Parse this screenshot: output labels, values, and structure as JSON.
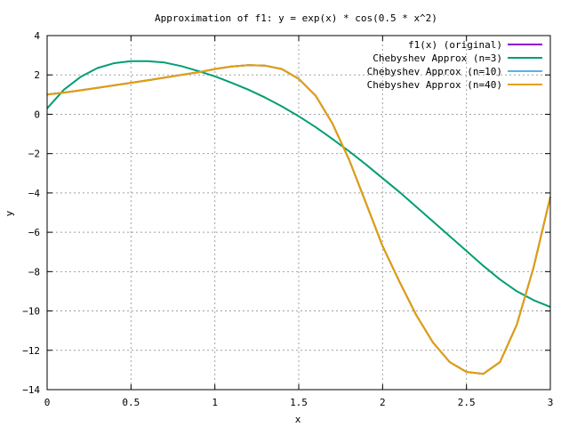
{
  "chart_data": {
    "type": "line",
    "title": "Approximation of f1: y = exp(x) * cos(0.5 * x^2)",
    "xlabel": "x",
    "ylabel": "y",
    "xlim": [
      0,
      3
    ],
    "ylim": [
      -14,
      4
    ],
    "xticks": [
      0,
      0.5,
      1,
      1.5,
      2,
      2.5,
      3
    ],
    "xtick_labels": [
      "0",
      "0.5",
      "1",
      "1.5",
      "2",
      "2.5",
      "3"
    ],
    "yticks": [
      4,
      2,
      0,
      -2,
      -4,
      -6,
      -8,
      -10,
      -12,
      -14
    ],
    "ytick_labels": [
      "4",
      "2",
      "0",
      "−2",
      "−4",
      "−6",
      "−8",
      "−10",
      "−12",
      "−14"
    ],
    "grid": true,
    "legend_position": "top-right",
    "x": [
      0,
      0.1,
      0.2,
      0.3,
      0.4,
      0.5,
      0.6,
      0.7,
      0.8,
      0.9,
      1.0,
      1.1,
      1.2,
      1.3,
      1.4,
      1.5,
      1.6,
      1.7,
      1.8,
      1.9,
      2.0,
      2.1,
      2.2,
      2.3,
      2.4,
      2.5,
      2.6,
      2.7,
      2.8,
      2.9,
      3.0
    ],
    "series": [
      {
        "name": "f1(x) (original)",
        "color": "#9400d3",
        "values": [
          1.0,
          1.1,
          1.22,
          1.34,
          1.47,
          1.6,
          1.73,
          1.86,
          2.0,
          2.13,
          2.3,
          2.43,
          2.5,
          2.47,
          2.3,
          1.8,
          0.95,
          -0.45,
          -2.3,
          -4.5,
          -6.7,
          -8.5,
          -10.2,
          -11.6,
          -12.6,
          -13.1,
          -13.2,
          -12.6,
          -10.7,
          -7.8,
          -4.2
        ]
      },
      {
        "name": "Chebyshev Approx (n=3)",
        "color": "#009e73",
        "values": [
          0.3,
          1.25,
          1.9,
          2.35,
          2.6,
          2.7,
          2.7,
          2.63,
          2.45,
          2.2,
          1.93,
          1.6,
          1.25,
          0.85,
          0.4,
          -0.1,
          -0.65,
          -1.25,
          -1.88,
          -2.55,
          -3.25,
          -3.95,
          -4.7,
          -5.45,
          -6.2,
          -6.95,
          -7.7,
          -8.4,
          -9.0,
          -9.45,
          -9.8
        ]
      },
      {
        "name": "Chebyshev Approx (n=10)",
        "color": "#56b4e9",
        "values": [
          1.0,
          1.1,
          1.22,
          1.34,
          1.47,
          1.6,
          1.73,
          1.86,
          2.0,
          2.13,
          2.3,
          2.43,
          2.5,
          2.47,
          2.3,
          1.8,
          0.95,
          -0.45,
          -2.3,
          -4.5,
          -6.7,
          -8.5,
          -10.2,
          -11.6,
          -12.6,
          -13.1,
          -13.2,
          -12.6,
          -10.7,
          -7.8,
          -4.2
        ]
      },
      {
        "name": "Chebyshev Approx (n=40)",
        "color": "#e69f00",
        "values": [
          1.0,
          1.1,
          1.22,
          1.34,
          1.47,
          1.6,
          1.73,
          1.86,
          2.0,
          2.13,
          2.3,
          2.43,
          2.5,
          2.47,
          2.3,
          1.8,
          0.95,
          -0.45,
          -2.3,
          -4.5,
          -6.7,
          -8.5,
          -10.2,
          -11.6,
          -12.6,
          -13.1,
          -13.2,
          -12.6,
          -10.7,
          -7.8,
          -4.2
        ]
      }
    ]
  }
}
